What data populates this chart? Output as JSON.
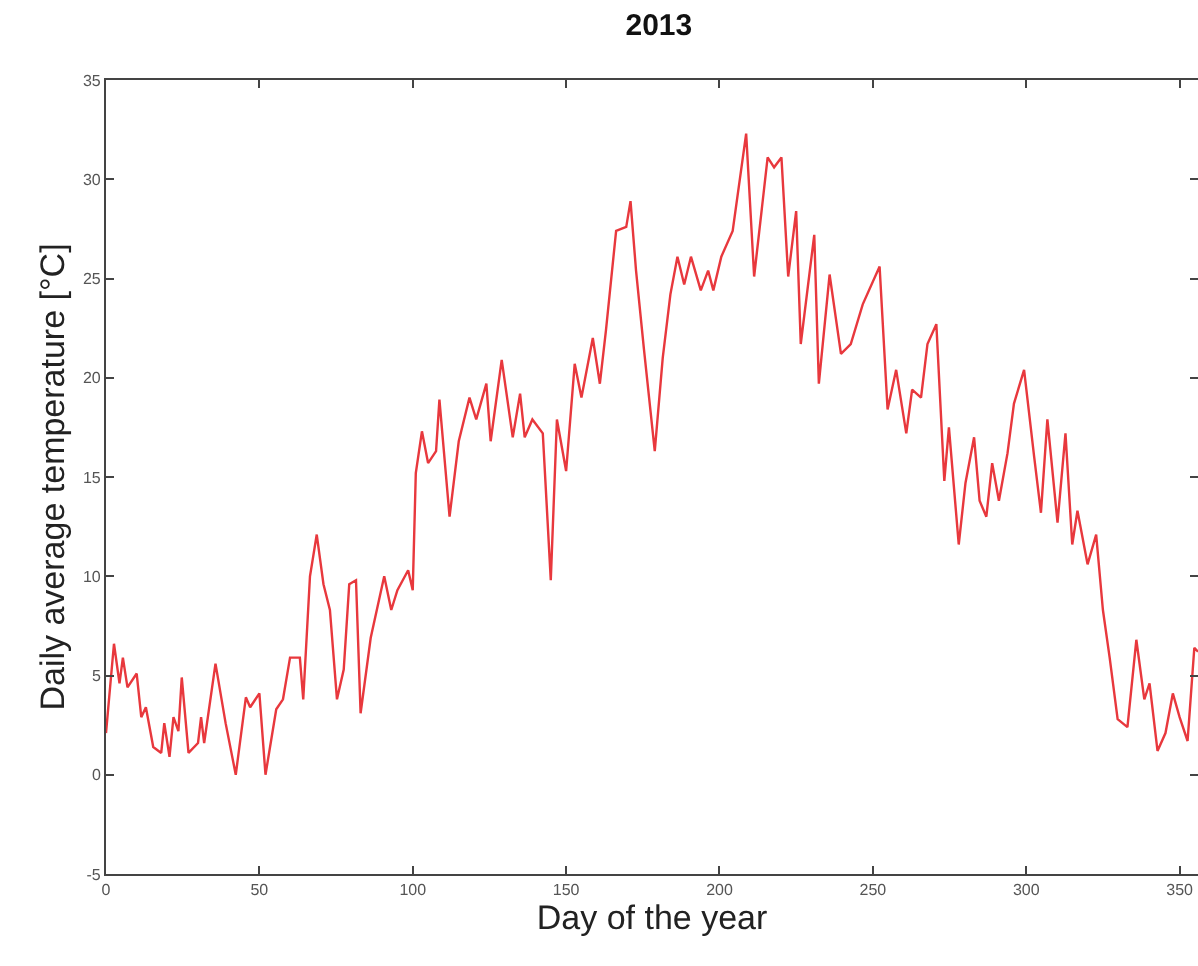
{
  "chart_data": {
    "type": "line",
    "title": "2013",
    "xlabel": "Day of the year",
    "ylabel": "Daily average temperature [°C]",
    "xlim": [
      0,
      356
    ],
    "xticks": [
      0,
      50,
      100,
      150,
      200,
      250,
      300,
      350
    ],
    "ylim": [
      -5,
      35
    ],
    "yticks": [
      -5,
      0,
      5,
      10,
      15,
      20,
      25,
      30,
      35
    ],
    "grid": false,
    "marker": "none",
    "line_style": "solid",
    "series": [
      {
        "color": "#e8383d",
        "x": [
          0,
          2.6,
          4.4,
          5.5,
          7,
          10,
          11.5,
          13,
          15.4,
          18,
          19,
          20.7,
          22,
          23.6,
          24.7,
          26.9,
          30,
          31,
          32,
          35.7,
          39,
          42.3,
          45.6,
          47,
          50,
          52,
          55.5,
          57.7,
          60,
          63.2,
          64.3,
          66.5,
          68.7,
          70.9,
          73,
          75.3,
          77.5,
          79.3,
          81.5,
          83,
          86.3,
          90.7,
          93,
          95,
          98.5,
          100,
          101,
          103,
          105,
          107.6,
          108.7,
          112,
          115,
          118.5,
          120.7,
          124,
          125.4,
          129,
          132.6,
          135,
          136.5,
          139,
          142.4,
          145,
          147,
          150,
          152.8,
          155,
          158.7,
          161,
          163,
          166.3,
          169.6,
          171,
          172.8,
          175.4,
          178.9,
          181.5,
          184,
          186.3,
          188.5,
          190.7,
          193.9,
          196.3,
          198,
          200.6,
          204.3,
          208.7,
          211.3,
          215.7,
          217.8,
          220.2,
          222.4,
          225,
          226.5,
          230.9,
          232.4,
          235.9,
          239.6,
          242.8,
          246.7,
          252.2,
          254.8,
          257.6,
          260.9,
          262.8,
          265.7,
          267.8,
          270.7,
          273.3,
          274.8,
          278,
          280.2,
          283,
          284.8,
          287,
          288.9,
          291.1,
          293.9,
          296,
          299.3,
          302.6,
          304.8,
          306.9,
          310.2,
          312.8,
          315,
          316.7,
          320,
          322.8,
          325,
          327.2,
          329.8,
          333,
          335.9,
          338.5,
          340.2,
          342.8,
          345.4,
          347.8,
          350,
          352.6,
          354.8,
          356
        ],
        "values": [
          2.1,
          6.6,
          4.6,
          5.9,
          4.4,
          5.1,
          2.9,
          3.4,
          1.4,
          1.1,
          2.6,
          0.9,
          2.9,
          2.2,
          4.9,
          1.1,
          1.6,
          2.9,
          1.6,
          5.6,
          2.6,
          0,
          3.9,
          3.4,
          4.1,
          0,
          3.3,
          3.8,
          5.9,
          5.9,
          3.8,
          10,
          12.1,
          9.6,
          8.3,
          3.8,
          5.3,
          9.6,
          9.8,
          3.1,
          6.9,
          10,
          8.3,
          9.3,
          10.3,
          9.3,
          15.2,
          17.3,
          15.7,
          16.3,
          18.9,
          13,
          16.8,
          19,
          17.9,
          19.7,
          16.8,
          20.9,
          17,
          19.2,
          17,
          17.9,
          17.2,
          9.8,
          17.9,
          15.3,
          20.7,
          19,
          22,
          19.7,
          22.4,
          27.4,
          27.6,
          28.9,
          25.4,
          21.4,
          16.3,
          21,
          24.2,
          26.1,
          24.7,
          26.1,
          24.4,
          25.4,
          24.4,
          26.1,
          27.4,
          32.3,
          25.1,
          31.1,
          30.6,
          31.1,
          25.1,
          28.4,
          21.7,
          27.2,
          19.7,
          25.2,
          21.2,
          21.7,
          23.7,
          25.6,
          18.4,
          20.4,
          17.2,
          19.4,
          19,
          21.7,
          22.7,
          14.8,
          17.5,
          11.6,
          14.7,
          17,
          13.8,
          13,
          15.7,
          13.8,
          16.2,
          18.7,
          20.4,
          16,
          13.2,
          17.9,
          12.7,
          17.2,
          11.6,
          13.3,
          10.6,
          12.1,
          8.3,
          5.9,
          2.8,
          2.4,
          6.8,
          3.8,
          4.6,
          1.2,
          2.1,
          4.1,
          2.9,
          1.7,
          6.4,
          6.2
        ]
      }
    ]
  }
}
